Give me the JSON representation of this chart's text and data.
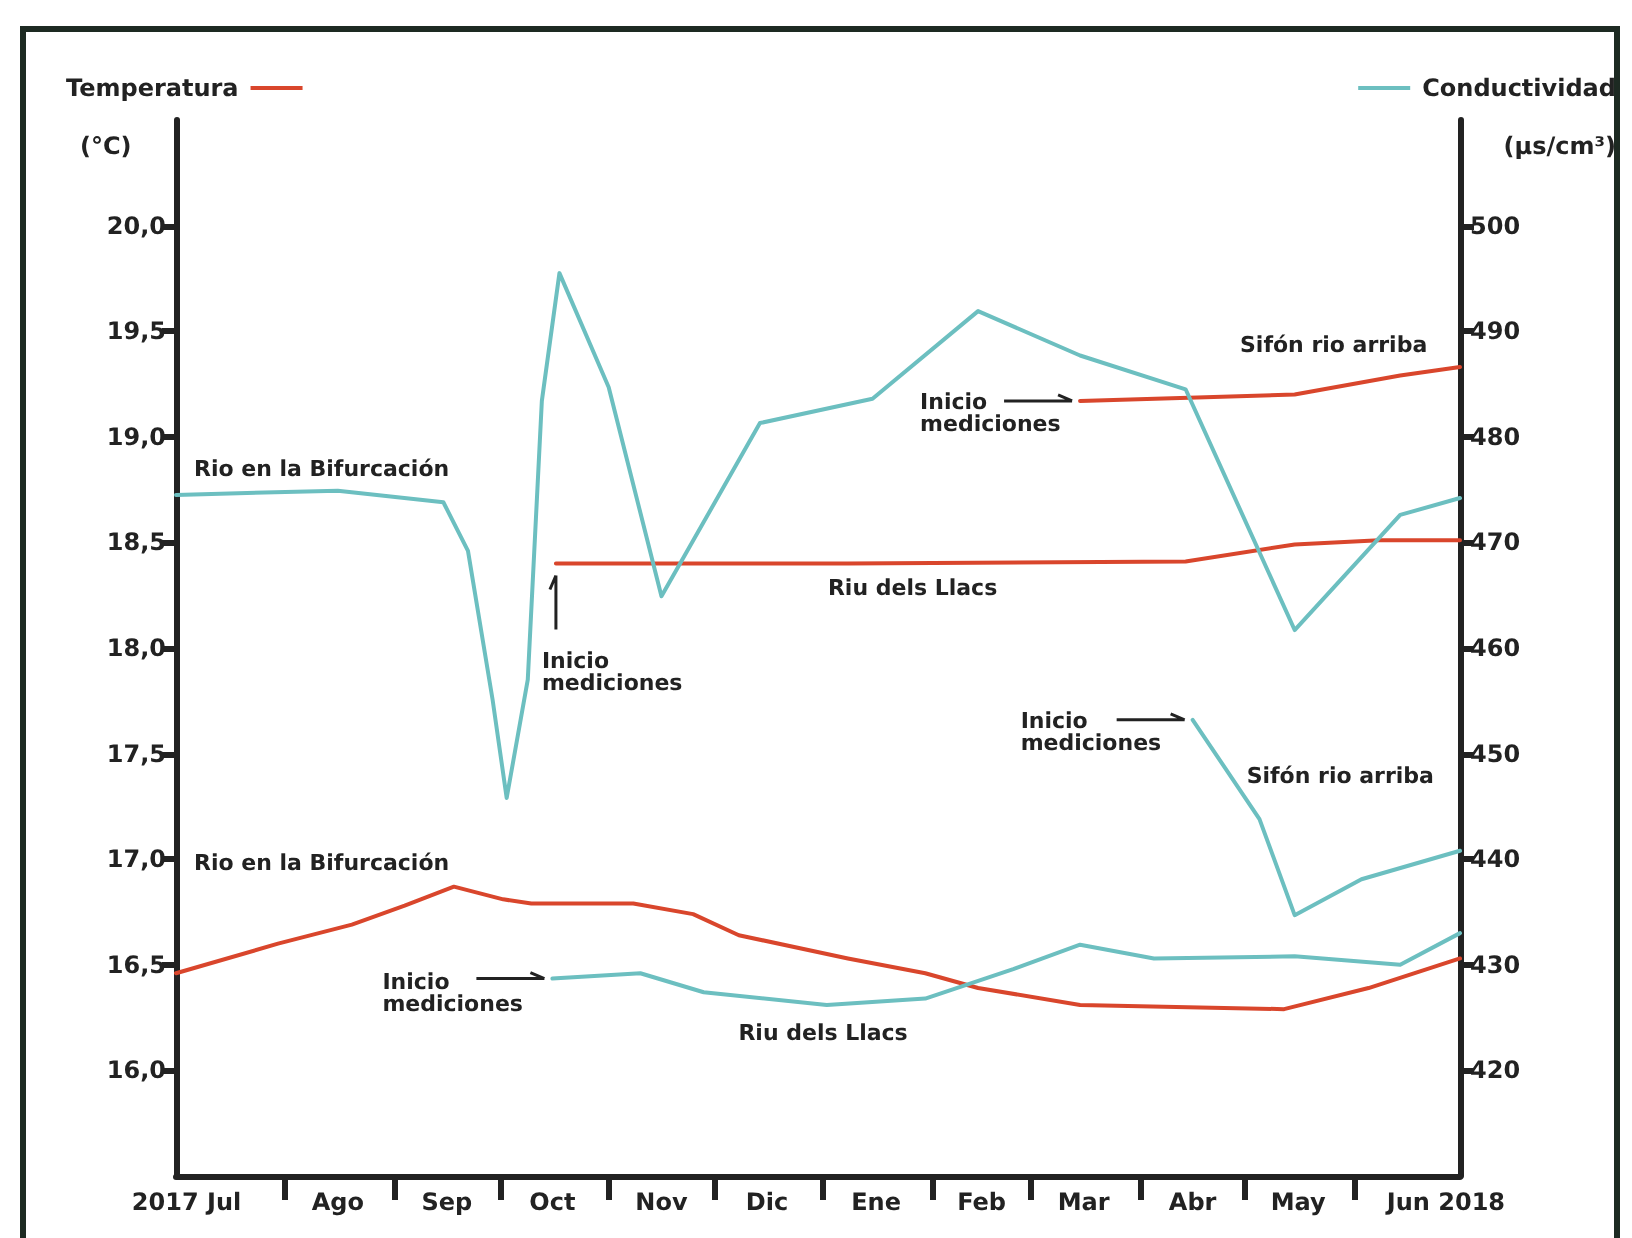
{
  "chart_data": {
    "type": "line",
    "ylabel": "Temperatura\n(°C)",
    "y2label": "Conductividad\n(μs/cm³)",
    "legend": false,
    "grid": false,
    "marker": "none",
    "line_style": "solid",
    "xlim": [
      "2017-07-01",
      "2018-07-01"
    ],
    "xticks": [
      {
        "value": "2017-08-01",
        "label": null
      },
      {
        "value": "2017-09-01",
        "label": null
      },
      {
        "value": "2017-10-01",
        "label": null
      },
      {
        "value": "2017-11-01",
        "label": null
      },
      {
        "value": "2017-12-01",
        "label": null
      },
      {
        "value": "2018-01-01",
        "label": null
      },
      {
        "value": "2018-02-01",
        "label": null
      },
      {
        "value": "2018-03-01",
        "label": null
      },
      {
        "value": "2018-04-01",
        "label": null
      },
      {
        "value": "2018-05-01",
        "label": null
      },
      {
        "value": "2018-06-01",
        "label": null
      },
      {
        "value": "2017-07-04",
        "label": "2017 Jul"
      },
      {
        "value": "2017-08-16",
        "label": "Ago"
      },
      {
        "value": "2017-09-16",
        "label": "Sep"
      },
      {
        "value": "2017-10-16",
        "label": "Oct"
      },
      {
        "value": "2017-11-16",
        "label": "Nov"
      },
      {
        "value": "2017-12-16",
        "label": "Dic"
      },
      {
        "value": "2018-01-16",
        "label": "Ene"
      },
      {
        "value": "2018-02-15",
        "label": "Feb"
      },
      {
        "value": "2018-03-16",
        "label": "Mar"
      },
      {
        "value": "2018-04-16",
        "label": "Abr"
      },
      {
        "value": "2018-05-16",
        "label": "May"
      },
      {
        "value": "2018-06-27",
        "label": "Jun 2018"
      }
    ],
    "ylim": [
      15.5,
      20.5
    ],
    "yticks": [
      {
        "value": 16,
        "label": "16,0"
      },
      {
        "value": 16.5,
        "label": "16,5"
      },
      {
        "value": 17,
        "label": "17,0"
      },
      {
        "value": 17.5,
        "label": "17,5"
      },
      {
        "value": 18,
        "label": "18,0"
      },
      {
        "value": 18.5,
        "label": "18,5"
      },
      {
        "value": 19,
        "label": "19,0"
      },
      {
        "value": 19.5,
        "label": "19,5"
      },
      {
        "value": 20,
        "label": "20,0"
      }
    ],
    "y2lim": [
      410,
      510
    ],
    "y2ticks": [
      420,
      430,
      440,
      450,
      460,
      470,
      480,
      490,
      500
    ],
    "series": [
      {
        "name": "Rio en la Bifurcación",
        "color": "#d9462c",
        "x": [
          "2017-07-01",
          "2017-07-30",
          "2017-08-20",
          "2017-09-04",
          "2017-09-18",
          "2017-10-02",
          "2017-10-10",
          "2017-11-08",
          "2017-11-25",
          "2017-12-08",
          "2018-01-08",
          "2018-01-30",
          "2018-02-14",
          "2018-03-15",
          "2018-05-12",
          "2018-06-05",
          "2018-07-01"
        ],
        "values": [
          16.46,
          16.6,
          16.69,
          16.78,
          16.87,
          16.81,
          16.79,
          16.79,
          16.74,
          16.64,
          16.53,
          16.46,
          16.39,
          16.31,
          16.29,
          16.39,
          16.53
        ]
      },
      {
        "name": "Riu dels Llacs",
        "color": "#d9462c",
        "x": [
          "2017-10-17",
          "2018-01-08",
          "2018-04-14",
          "2018-05-15",
          "2018-06-08",
          "2018-07-01"
        ],
        "values": [
          18.4,
          18.4,
          18.41,
          18.49,
          18.51,
          18.51
        ]
      },
      {
        "name": "Sifón rio arriba",
        "color": "#d9462c",
        "x": [
          "2018-03-15",
          "2018-05-15",
          "2018-06-14",
          "2018-07-01"
        ],
        "values": [
          19.17,
          19.2,
          19.29,
          19.33
        ]
      },
      {
        "name": "Rio en la Bifurcación",
        "color": "#6cbfc0",
        "axis": "y2",
        "x": [
          "2017-07-01",
          "2017-08-16",
          "2017-09-15",
          "2017-09-22",
          "2017-09-29",
          "2017-10-03",
          "2017-10-09",
          "2017-10-13",
          "2017-10-18",
          "2017-11-01",
          "2017-11-16",
          "2017-12-14",
          "2018-01-15",
          "2018-02-14",
          "2018-03-15",
          "2018-04-14",
          "2018-05-15",
          "2018-06-14",
          "2018-07-01"
        ],
        "values": [
          474.5,
          474.9,
          473.8,
          469.2,
          455.1,
          445.8,
          457,
          483.4,
          495.5,
          484.7,
          464.9,
          481.3,
          483.6,
          491.9,
          487.7,
          484.5,
          461.7,
          472.6,
          474.2
        ]
      },
      {
        "name": "Riu dels Llacs",
        "color": "#6cbfc0",
        "axis": "y2",
        "x": [
          "2017-10-16",
          "2017-11-10",
          "2017-11-28",
          "2018-01-02",
          "2018-01-30",
          "2018-02-24",
          "2018-03-15",
          "2018-04-05",
          "2018-05-15",
          "2018-06-14",
          "2018-07-01"
        ],
        "values": [
          428.7,
          429.2,
          427.4,
          426.2,
          426.8,
          429.6,
          431.9,
          430.6,
          430.8,
          430,
          433
        ]
      },
      {
        "name": "Sifón rio arriba",
        "color": "#6cbfc0",
        "axis": "y2",
        "x": [
          "2018-04-16",
          "2018-05-05",
          "2018-05-15",
          "2018-06-03",
          "2018-07-01"
        ],
        "values": [
          453.2,
          443.8,
          434.7,
          438.1,
          440.8
        ]
      }
    ],
    "annotations": [
      "Inicio\nmediciones",
      "Inicio\nmediciones",
      "Inicio\nmediciones",
      "Inicio\nmediciones"
    ]
  }
}
